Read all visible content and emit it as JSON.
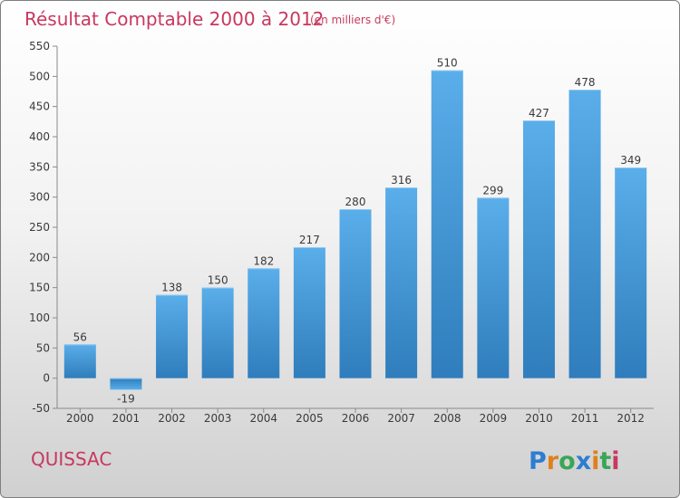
{
  "chart_data": {
    "type": "bar",
    "title": "Résultat Comptable 2000 à 2012",
    "subtitle": "(en milliers d'€)",
    "categories": [
      "2000",
      "2001",
      "2002",
      "2003",
      "2004",
      "2005",
      "2006",
      "2007",
      "2008",
      "2009",
      "2010",
      "2011",
      "2012"
    ],
    "values": [
      56,
      -19,
      138,
      150,
      182,
      217,
      280,
      316,
      510,
      299,
      427,
      478,
      349
    ],
    "value_labels": [
      "56",
      "-19",
      "138",
      "150",
      "182",
      "217",
      "280",
      "316",
      "510",
      "299",
      "427",
      "478",
      "349"
    ],
    "xlabel": "",
    "ylabel": "",
    "ylim": [
      -50,
      550
    ],
    "yticks": [
      -50,
      0,
      50,
      100,
      150,
      200,
      250,
      300,
      350,
      400,
      450,
      500,
      550
    ],
    "ytick_labels": [
      "-50",
      "0",
      "50",
      "100",
      "150",
      "200",
      "250",
      "300",
      "350",
      "400",
      "450",
      "500",
      "550"
    ],
    "grid": false,
    "bar_color": "#4a9ee0"
  },
  "footer": {
    "city": "QUISSAC",
    "brand_letters": [
      "P",
      "r",
      "o",
      "x",
      "i",
      "t",
      "i"
    ],
    "brand_colors": [
      "#2d7dd2",
      "#e0801c",
      "#3aa655",
      "#2d7dd2",
      "#e0801c",
      "#3aa655",
      "#c8385f"
    ]
  }
}
